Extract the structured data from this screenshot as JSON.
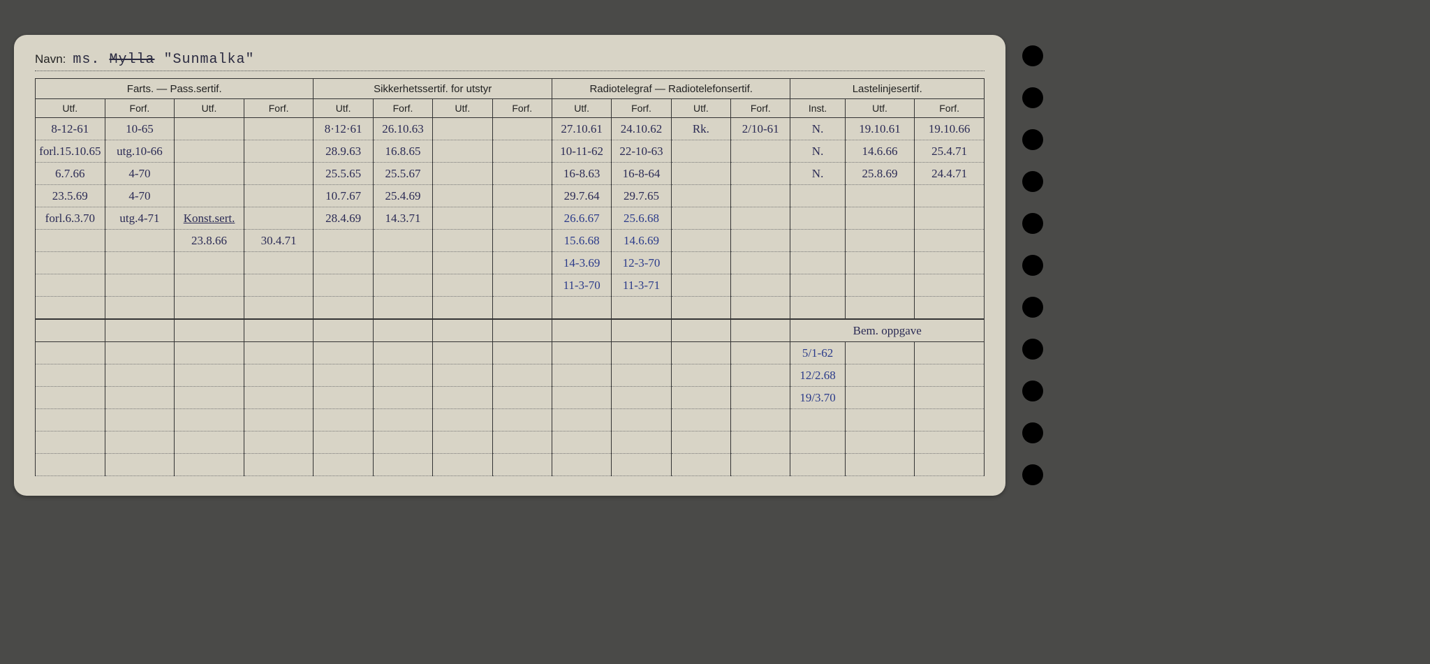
{
  "name_label": "Navn:",
  "name_prefix": "ms.",
  "name_struck": "Mylla",
  "name_value": "\"Sunmalka\"",
  "groups": {
    "farts": "Farts. — Pass.sertif.",
    "sikker": "Sikkerhetssertif. for utstyr",
    "radio": "Radiotelegraf — Radiotelefonsertif.",
    "laste": "Lastelinjesertif."
  },
  "subheaders": {
    "utf": "Utf.",
    "forf": "Forf.",
    "inst": "Inst."
  },
  "bem_label": "Bem. oppgave",
  "rows": [
    {
      "f1": "8-12-61",
      "f2": "10-65",
      "f3": "",
      "f4": "",
      "s1": "8·12·61",
      "s2": "26.10.63",
      "s3": "",
      "s4": "",
      "r1": "27.10.61",
      "r2": "24.10.62",
      "r3": "Rk.",
      "r4": "2/10-61",
      "l1": "N.",
      "l2": "19.10.61",
      "l3": "19.10.66"
    },
    {
      "f1": "forl.15.10.65",
      "f2": "utg.10-66",
      "f3": "",
      "f4": "",
      "s1": "28.9.63",
      "s2": "16.8.65",
      "s3": "",
      "s4": "",
      "r1": "10-11-62",
      "r2": "22-10-63",
      "r3": "",
      "r4": "",
      "l1": "N.",
      "l2": "14.6.66",
      "l3": "25.4.71"
    },
    {
      "f1": "6.7.66",
      "f2": "4-70",
      "f3": "",
      "f4": "",
      "s1": "25.5.65",
      "s2": "25.5.67",
      "s3": "",
      "s4": "",
      "r1": "16-8.63",
      "r2": "16-8-64",
      "r3": "",
      "r4": "",
      "l1": "N.",
      "l2": "25.8.69",
      "l3": "24.4.71"
    },
    {
      "f1": "23.5.69",
      "f2": "4-70",
      "f3": "",
      "f4": "",
      "s1": "10.7.67",
      "s2": "25.4.69",
      "s3": "",
      "s4": "",
      "r1": "29.7.64",
      "r2": "29.7.65",
      "r3": "",
      "r4": "",
      "l1": "",
      "l2": "",
      "l3": ""
    },
    {
      "f1": "forl.6.3.70",
      "f2": "utg.4-71",
      "f3": "Konst.sert.",
      "f4": "",
      "s1": "28.4.69",
      "s2": "14.3.71",
      "s3": "",
      "s4": "",
      "r1": "26.6.67",
      "r2": "25.6.68",
      "r3": "",
      "r4": "",
      "l1": "",
      "l2": "",
      "l3": ""
    },
    {
      "f1": "",
      "f2": "",
      "f3": "23.8.66",
      "f4": "30.4.71",
      "s1": "",
      "s2": "",
      "s3": "",
      "s4": "",
      "r1": "15.6.68",
      "r2": "14.6.69",
      "r3": "",
      "r4": "",
      "l1": "",
      "l2": "",
      "l3": ""
    },
    {
      "f1": "",
      "f2": "",
      "f3": "",
      "f4": "",
      "s1": "",
      "s2": "",
      "s3": "",
      "s4": "",
      "r1": "14-3.69",
      "r2": "12-3-70",
      "r3": "",
      "r4": "",
      "l1": "",
      "l2": "",
      "l3": ""
    },
    {
      "f1": "",
      "f2": "",
      "f3": "",
      "f4": "",
      "s1": "",
      "s2": "",
      "s3": "",
      "s4": "",
      "r1": "11-3-70",
      "r2": "11-3-71",
      "r3": "",
      "r4": "",
      "l1": "",
      "l2": "",
      "l3": ""
    }
  ],
  "bem_rows": [
    {
      "c1": "5/1-62",
      "c2": "",
      "c3": ""
    },
    {
      "c1": "12/2.68",
      "c2": "",
      "c3": ""
    },
    {
      "c1": "19/3.70",
      "c2": "",
      "c3": ""
    }
  ],
  "colors": {
    "card_bg": "#d8d4c6",
    "border": "#333333",
    "ink_black": "#1a1a1a",
    "ink_blue": "#2b3b8a",
    "ink_darkblue": "#2b2b55",
    "page_bg": "#4a4a48"
  },
  "col_widths_pct": [
    7.0,
    7.0,
    7.0,
    7.0,
    6.0,
    6.0,
    6.0,
    6.0,
    6.0,
    6.0,
    6.0,
    6.0,
    5.5,
    7.0,
    7.0
  ],
  "num_empty_body_rows": 5,
  "num_holes": 11
}
